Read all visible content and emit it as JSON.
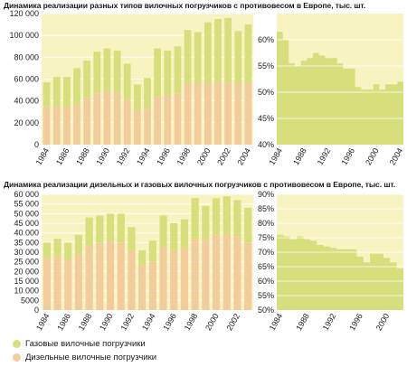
{
  "titles": {
    "top": "Динамика реализации разных типов вилочных погрузчиков с противовесом в Европе, тыс. шт.",
    "bottom": "Динамика реализации дизельных и газовых вилочных погрузчиков с противовесом в Европе, тыс. шт."
  },
  "legend": {
    "gas": {
      "label": "Газовые вилочные погрузчики",
      "color": "#d6df7c"
    },
    "diesel": {
      "label": "Дизельные вилочные погрузчики",
      "color": "#f3cc9c"
    }
  },
  "colors": {
    "plot_bg": "#f8f4c2",
    "area": "#d6df7c",
    "grid": "#ffffff"
  },
  "chart_data": [
    {
      "id": "top-bars",
      "type": "bar",
      "stacked": true,
      "categories": [
        "1984",
        "1985",
        "1986",
        "1987",
        "1988",
        "1989",
        "1990",
        "1991",
        "1992",
        "1993",
        "1994",
        "1995",
        "1996",
        "1997",
        "1998",
        "1999",
        "2000",
        "2001",
        "2002",
        "2003",
        "2004"
      ],
      "x_tick_labels": [
        "1984",
        "",
        "1986",
        "",
        "1988",
        "",
        "1990",
        "",
        "1992",
        "",
        "1994",
        "",
        "1996",
        "",
        "1998",
        "",
        "2000",
        "",
        "2002",
        "",
        "2004"
      ],
      "series": [
        {
          "key": "diesel",
          "values": [
            35000,
            35000,
            34000,
            37000,
            43000,
            47000,
            49000,
            47000,
            41000,
            32000,
            33000,
            44000,
            46000,
            47000,
            56000,
            56000,
            57000,
            57000,
            57000,
            56000,
            57000
          ]
        },
        {
          "key": "gas",
          "values": [
            22000,
            27000,
            28000,
            33000,
            34000,
            38000,
            39000,
            39000,
            33000,
            23000,
            28000,
            44000,
            40000,
            43000,
            49000,
            47000,
            55000,
            58000,
            59000,
            48000,
            53000
          ]
        }
      ],
      "ylim": [
        0,
        120000
      ],
      "y_ticks": [
        0,
        20000,
        40000,
        60000,
        80000,
        100000,
        120000
      ],
      "y_tick_labels": [
        "0",
        "20 000",
        "40 000",
        "60 000",
        "80 000",
        "100 000",
        "120 000"
      ],
      "grid": true
    },
    {
      "id": "top-area",
      "type": "area",
      "categories": [
        "1984",
        "1985",
        "1986",
        "1987",
        "1988",
        "1989",
        "1990",
        "1991",
        "1992",
        "1993",
        "1994",
        "1995",
        "1996",
        "1997",
        "1998",
        "1999",
        "2000",
        "2001",
        "2002",
        "2003",
        "2004"
      ],
      "x_tick_labels": [
        "1984",
        "",
        "1988",
        "",
        "1992",
        "",
        "1996",
        "",
        "2000",
        "",
        "2004"
      ],
      "x_tick_positions": [
        0,
        2,
        4,
        6,
        8,
        10,
        12,
        14,
        16,
        18,
        20
      ],
      "values": [
        61.5,
        60,
        55.5,
        55,
        56,
        56.5,
        57.5,
        57,
        56.5,
        56.5,
        55.5,
        54.5,
        54.5,
        51,
        50.5,
        50.5,
        51.5,
        50.5,
        51.5,
        51.5,
        52
      ],
      "ylim": [
        40,
        65
      ],
      "y_ticks": [
        40,
        45,
        50,
        55,
        60
      ],
      "y_tick_labels": [
        "40%",
        "45%",
        "50%",
        "55%",
        "60%"
      ],
      "grid": true
    },
    {
      "id": "bottom-bars",
      "type": "bar",
      "stacked": true,
      "categories": [
        "1984",
        "1985",
        "1986",
        "1987",
        "1988",
        "1989",
        "1990",
        "1991",
        "1992",
        "1993",
        "1994",
        "1995",
        "1996",
        "1997",
        "1998",
        "1999",
        "2000",
        "2001",
        "2002",
        "2003"
      ],
      "x_tick_labels": [
        "1984",
        "",
        "1986",
        "",
        "1988",
        "",
        "1990",
        "",
        "1992",
        "",
        "1994",
        "",
        "1996",
        "",
        "1998",
        "",
        "2000",
        "",
        "2002",
        ""
      ],
      "series": [
        {
          "key": "diesel",
          "values": [
            27000,
            28000,
            26000,
            29000,
            33000,
            35000,
            36000,
            35000,
            31000,
            23000,
            25000,
            33000,
            31000,
            32000,
            37000,
            37000,
            39000,
            39000,
            38000,
            35000
          ]
        },
        {
          "key": "gas",
          "values": [
            8000,
            9000,
            9000,
            10000,
            15000,
            14000,
            14000,
            15000,
            12000,
            8000,
            11000,
            16000,
            14000,
            15000,
            21000,
            17000,
            19000,
            20000,
            19000,
            18000
          ]
        }
      ],
      "ylim": [
        0,
        60000
      ],
      "y_ticks": [
        0,
        5000,
        10000,
        15000,
        20000,
        25000,
        30000,
        35000,
        40000,
        45000,
        50000,
        55000,
        60000
      ],
      "y_tick_labels": [
        "0",
        "5000",
        "10 000",
        "15 000",
        "20 000",
        "25 000",
        "30 000",
        "35 000",
        "40 000",
        "45 000",
        "50 000",
        "55 000",
        "60 000"
      ],
      "grid": true
    },
    {
      "id": "bottom-area",
      "type": "area",
      "categories": [
        "1984",
        "1985",
        "1986",
        "1987",
        "1988",
        "1989",
        "1990",
        "1991",
        "1992",
        "1993",
        "1994",
        "1995",
        "1996",
        "1997",
        "1998",
        "1999",
        "2000",
        "2001",
        "2002"
      ],
      "x_tick_labels": [
        "1984",
        "",
        "1988",
        "",
        "1992",
        "",
        "1996",
        "",
        "2000"
      ],
      "x_tick_positions": [
        0,
        2,
        4,
        6,
        8,
        10,
        12,
        14,
        16
      ],
      "values": [
        76,
        75.5,
        74.5,
        75.5,
        74.5,
        74,
        72.5,
        72,
        71.5,
        71,
        71,
        71,
        68.5,
        66.5,
        69.5,
        69.5,
        68,
        66.5,
        64.5
      ],
      "ylim": [
        50,
        90
      ],
      "y_ticks": [
        50,
        55,
        60,
        65,
        70,
        75,
        80,
        85,
        90
      ],
      "y_tick_labels": [
        "50%",
        "55%",
        "60%",
        "65%",
        "70%",
        "75%",
        "80%",
        "85%",
        "90%"
      ],
      "grid": true
    }
  ]
}
